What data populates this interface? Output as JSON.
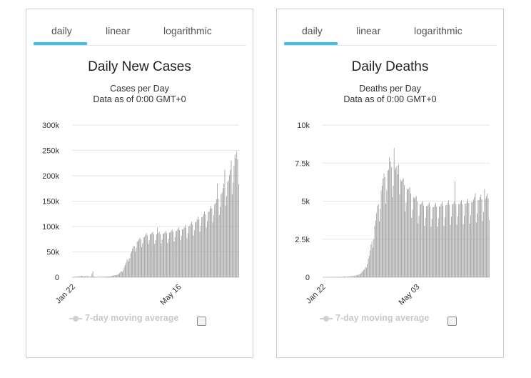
{
  "tabs": [
    {
      "label": "daily",
      "active": true
    },
    {
      "label": "linear",
      "active": false
    },
    {
      "label": "logarithmic",
      "active": false
    }
  ],
  "legend": {
    "label": "7-day moving average"
  },
  "colors": {
    "accent": "#3ec1e8",
    "bars": "#9a9a9a",
    "grid": "#e6e6e6"
  },
  "chart_data": [
    {
      "type": "bar",
      "title": "Daily New Cases",
      "subtitles": [
        "Cases per Day",
        "Data as of 0:00 GMT+0"
      ],
      "xlabel": "",
      "ylabel": "",
      "ylim": [
        0,
        300000
      ],
      "y_ticks": [
        {
          "value": 0,
          "label": "0"
        },
        {
          "value": 50000,
          "label": "50k"
        },
        {
          "value": 100000,
          "label": "100k"
        },
        {
          "value": 150000,
          "label": "150k"
        },
        {
          "value": 200000,
          "label": "200k"
        },
        {
          "value": 250000,
          "label": "250k"
        },
        {
          "value": 300000,
          "label": "300k"
        }
      ],
      "x_ticks": [
        {
          "index": 0,
          "label": "Jan 22"
        },
        {
          "index": 115,
          "label": "May 16"
        }
      ],
      "n_days": 181,
      "keypoints": [
        [
          0,
          500
        ],
        [
          10,
          2500
        ],
        [
          20,
          1500
        ],
        [
          22,
          12000
        ],
        [
          23,
          2000
        ],
        [
          24,
          500
        ],
        [
          40,
          1500
        ],
        [
          50,
          6000
        ],
        [
          55,
          16000
        ],
        [
          60,
          36000
        ],
        [
          65,
          55000
        ],
        [
          70,
          70000
        ],
        [
          75,
          76000
        ],
        [
          80,
          82000
        ],
        [
          85,
          85000
        ],
        [
          90,
          84000
        ],
        [
          100,
          86000
        ],
        [
          110,
          90000
        ],
        [
          120,
          95000
        ],
        [
          130,
          104000
        ],
        [
          140,
          118000
        ],
        [
          150,
          133000
        ],
        [
          160,
          160000
        ],
        [
          170,
          195000
        ],
        [
          176,
          225000
        ],
        [
          180,
          235000
        ]
      ],
      "weekly_dip": 0.22,
      "peaks": [
        {
          "index": 178,
          "value": 248000
        },
        {
          "index": 176,
          "value": 242000
        },
        {
          "index": 172,
          "value": 230000
        },
        {
          "index": 165,
          "value": 212000
        },
        {
          "index": 157,
          "value": 185000
        },
        {
          "index": 92,
          "value": 98000
        }
      ]
    },
    {
      "type": "bar",
      "title": "Daily Deaths",
      "subtitles": [
        "Deaths per Day",
        "Data as of 0:00 GMT+0"
      ],
      "xlabel": "",
      "ylabel": "",
      "ylim": [
        0,
        10000
      ],
      "y_ticks": [
        {
          "value": 0,
          "label": "0"
        },
        {
          "value": 2500,
          "label": "2.5k"
        },
        {
          "value": 5000,
          "label": "5k"
        },
        {
          "value": 7500,
          "label": "7.5k"
        },
        {
          "value": 10000,
          "label": "10k"
        }
      ],
      "x_ticks": [
        {
          "index": 0,
          "label": "Jan 22"
        },
        {
          "index": 102,
          "label": "May 03"
        }
      ],
      "n_days": 181,
      "keypoints": [
        [
          0,
          10
        ],
        [
          20,
          30
        ],
        [
          30,
          60
        ],
        [
          38,
          150
        ],
        [
          45,
          500
        ],
        [
          50,
          1400
        ],
        [
          55,
          3000
        ],
        [
          60,
          4800
        ],
        [
          65,
          6300
        ],
        [
          70,
          7000
        ],
        [
          75,
          7300
        ],
        [
          80,
          6900
        ],
        [
          85,
          6300
        ],
        [
          90,
          5900
        ],
        [
          95,
          5500
        ],
        [
          100,
          5100
        ],
        [
          105,
          4800
        ],
        [
          110,
          4700
        ],
        [
          120,
          4600
        ],
        [
          130,
          4700
        ],
        [
          140,
          4800
        ],
        [
          150,
          4800
        ],
        [
          160,
          4900
        ],
        [
          170,
          5100
        ],
        [
          180,
          5200
        ]
      ],
      "weekly_dip": 0.28,
      "peaks": [
        {
          "index": 77,
          "value": 8500
        },
        {
          "index": 72,
          "value": 7900
        },
        {
          "index": 82,
          "value": 7400
        },
        {
          "index": 143,
          "value": 6300
        },
        {
          "index": 175,
          "value": 5800
        },
        {
          "index": 165,
          "value": 5500
        }
      ]
    }
  ]
}
